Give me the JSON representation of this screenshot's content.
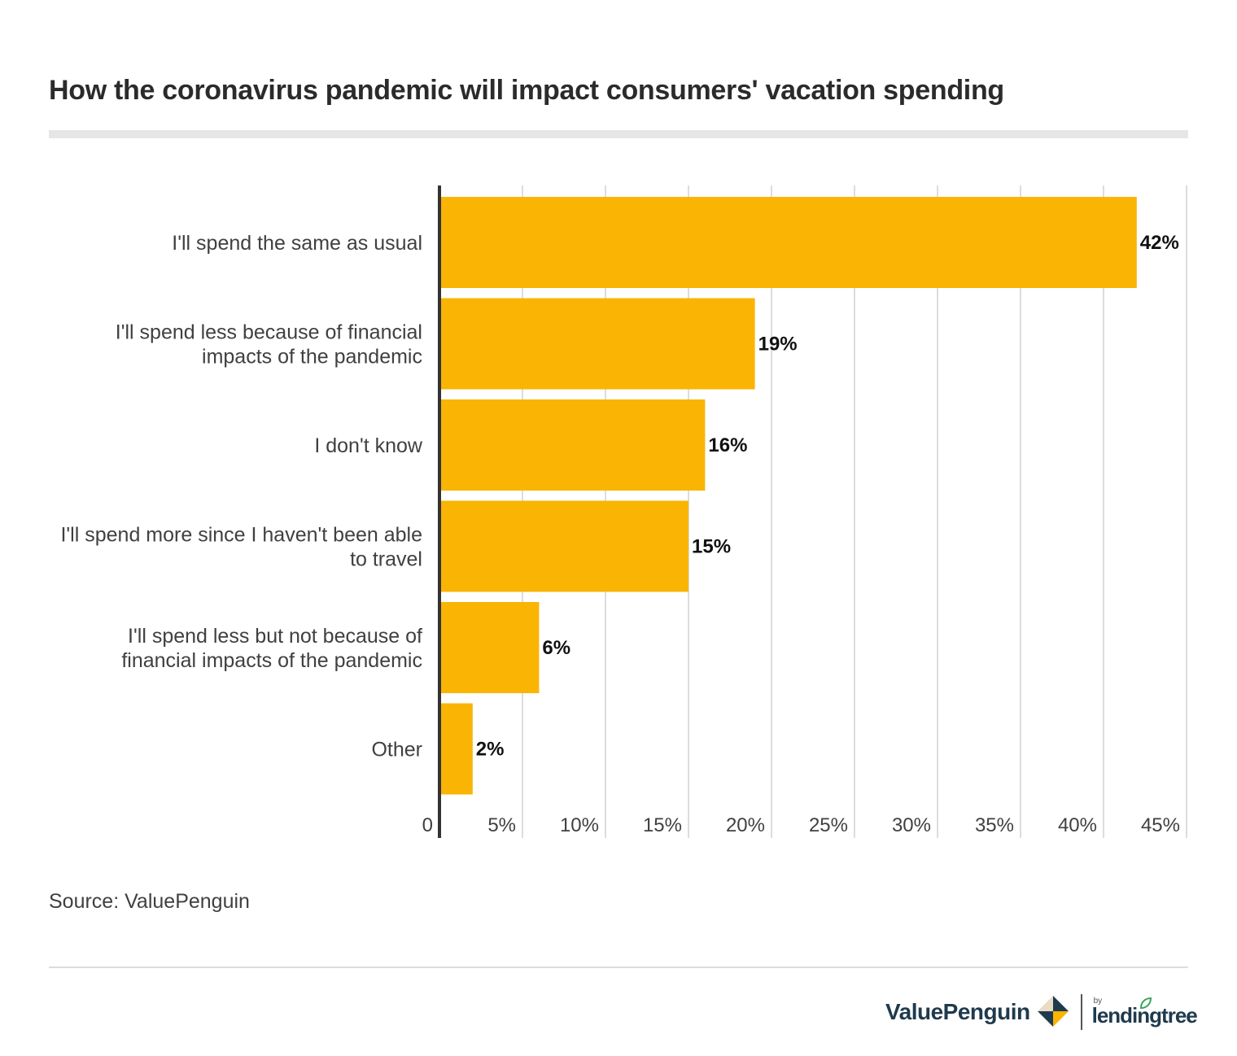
{
  "title": "How the coronavirus pandemic will impact consumers' vacation spending",
  "source": "Source: ValuePenguin",
  "brand": {
    "valuepenguin": "ValuePenguin",
    "by": "by",
    "lendingtree": "lendingtree"
  },
  "colors": {
    "bar": "#F9B404",
    "grid": "#dddddd",
    "axis": "#333333",
    "dark": "#1f3a4d"
  },
  "chart_data": {
    "type": "bar",
    "orientation": "horizontal",
    "categories": [
      [
        "I'll spend the same as usual"
      ],
      [
        "I'll spend less because of financial",
        "impacts of the pandemic"
      ],
      [
        "I don't know"
      ],
      [
        "I'll spend more since I haven't been able",
        "to travel"
      ],
      [
        "I'll spend less but not because of",
        "financial impacts of the pandemic"
      ],
      [
        "Other"
      ]
    ],
    "values": [
      42,
      19,
      16,
      15,
      6,
      2
    ],
    "value_labels": [
      "42%",
      "19%",
      "16%",
      "15%",
      "6%",
      "2%"
    ],
    "xlim": [
      0,
      45
    ],
    "xticks": [
      0,
      5,
      10,
      15,
      20,
      25,
      30,
      35,
      40,
      45
    ],
    "xtick_labels": [
      "0",
      "5%",
      "10%",
      "15%",
      "20%",
      "25%",
      "30%",
      "35%",
      "40%",
      "45%"
    ],
    "grid": true,
    "title": "How the coronavirus pandemic will impact consumers' vacation spending",
    "xlabel": "",
    "ylabel": ""
  }
}
